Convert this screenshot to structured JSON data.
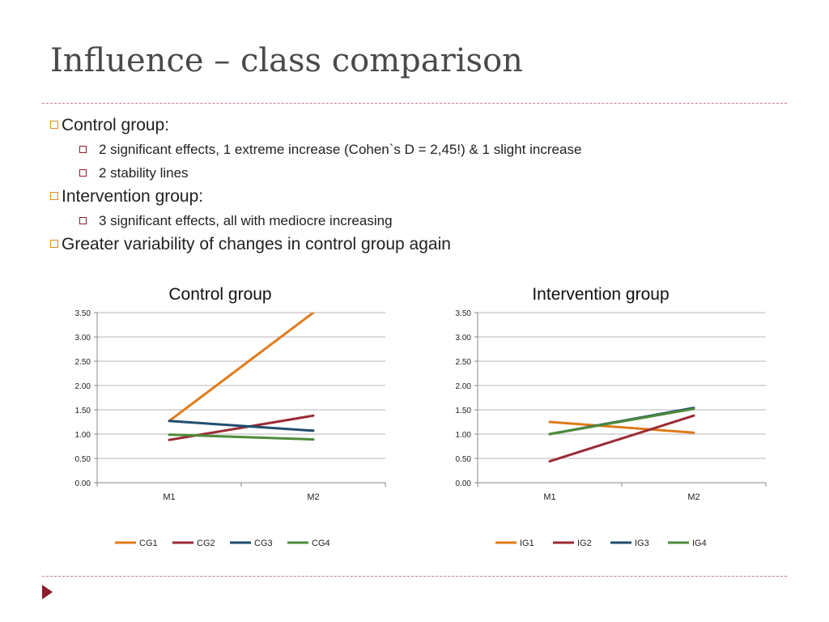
{
  "slide": {
    "title": "Influence – class comparison",
    "bullets": [
      {
        "text": "Control group:",
        "sub": [
          "2 significant effects, 1 extreme increase (Cohen`s D = 2,45!) & 1 slight increase",
          "2 stability lines"
        ]
      },
      {
        "text": "Intervention group:",
        "sub": [
          "3 significant effects, all with mediocre increasing"
        ]
      },
      {
        "text": "Greater variability of changes in control group again",
        "sub": []
      }
    ]
  },
  "colors": {
    "bullet_outer": "#e08a1c",
    "bullet_inner": "#8b1d2c",
    "rule": "#c97a8b",
    "nav_arrow": "#8b1d2c"
  },
  "chart_data": [
    {
      "type": "line",
      "title": "Control group",
      "categories": [
        "M1",
        "M2"
      ],
      "ylim": [
        0,
        3.5
      ],
      "yticks": [
        "0.00",
        "0.50",
        "1.00",
        "1.50",
        "2.00",
        "2.50",
        "3.00",
        "3.50"
      ],
      "grid": true,
      "legend": "bottom",
      "series": [
        {
          "name": "CG1",
          "color": "#e07b1a",
          "values": [
            1.27,
            3.5
          ]
        },
        {
          "name": "CG2",
          "color": "#9b2a35",
          "values": [
            0.88,
            1.38
          ]
        },
        {
          "name": "CG3",
          "color": "#1f4e6e",
          "values": [
            1.27,
            1.07
          ]
        },
        {
          "name": "CG4",
          "color": "#4e8b3a",
          "values": [
            0.99,
            0.89
          ]
        }
      ]
    },
    {
      "type": "line",
      "title": "Intervention group",
      "categories": [
        "M1",
        "M2"
      ],
      "ylim": [
        0,
        3.5
      ],
      "yticks": [
        "0.00",
        "0.50",
        "1.00",
        "1.50",
        "2.00",
        "2.50",
        "3.00",
        "3.50"
      ],
      "grid": true,
      "legend": "bottom",
      "series": [
        {
          "name": "IG1",
          "color": "#e07b1a",
          "values": [
            1.25,
            1.03
          ]
        },
        {
          "name": "IG2",
          "color": "#9b2a35",
          "values": [
            0.44,
            1.38
          ]
        },
        {
          "name": "IG3",
          "color": "#1f4e6e",
          "values": [
            1.0,
            1.54
          ]
        },
        {
          "name": "IG4",
          "color": "#4e8b3a",
          "values": [
            1.0,
            1.52
          ]
        }
      ]
    }
  ]
}
